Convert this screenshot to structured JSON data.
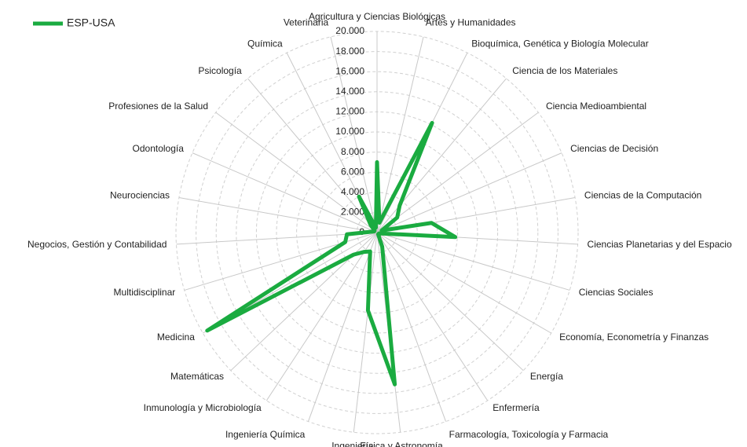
{
  "chart_data": {
    "type": "radar",
    "categories": [
      "Agricultura y Ciencias Biológicas",
      "Artes y Humanidades",
      "Bioquímica, Genética y Biología Molecular",
      "Ciencia de los Materiales",
      "Ciencia Medioambiental",
      "Ciencias de Decisión",
      "Ciencias de la Computación",
      "Ciencias Planetarias y del Espacio",
      "Ciencias Sociales",
      "Economía, Econometría y Finanzas",
      "Energía",
      "Enfermería",
      "Farmacología, Toxicología y Farmacia",
      "Física y Astronomía",
      "Ingeniería",
      "Ingeniería Química",
      "Inmunología y Microbiología",
      "Matemáticas",
      "Medicina",
      "Multidisciplinar",
      "Negocios, Gestión y Contabilidad",
      "Neurociencias",
      "Odontología",
      "Profesiones de la Salud",
      "Psicología",
      "Química",
      "Veterinaria"
    ],
    "series": [
      {
        "name": "ESP-USA",
        "color": "#1aab40",
        "values": [
          7000,
          1000,
          12200,
          3500,
          2500,
          500,
          5500,
          7800,
          300,
          200,
          300,
          200,
          1500,
          15200,
          7800,
          2000,
          2300,
          3200,
          19500,
          3300,
          3000,
          500,
          300,
          300,
          1000,
          4000,
          500
        ]
      }
    ],
    "ylim": [
      0,
      20000
    ],
    "yticks": [
      0,
      {
        "value": 2000,
        "label": "2.000"
      },
      {
        "value": 4000,
        "label": "4.000"
      },
      {
        "value": 6000,
        "label": "6.000"
      },
      {
        "value": 8000,
        "label": "8.000"
      },
      {
        "value": 10000,
        "label": "10.000"
      },
      {
        "value": 12000,
        "label": "12.000"
      },
      {
        "value": 14000,
        "label": "14.000"
      },
      {
        "value": 16000,
        "label": "16.000"
      },
      {
        "value": 18000,
        "label": "18.000"
      },
      {
        "value": 20000,
        "label": "20.000"
      }
    ],
    "grid": true,
    "legend": "top-left"
  }
}
